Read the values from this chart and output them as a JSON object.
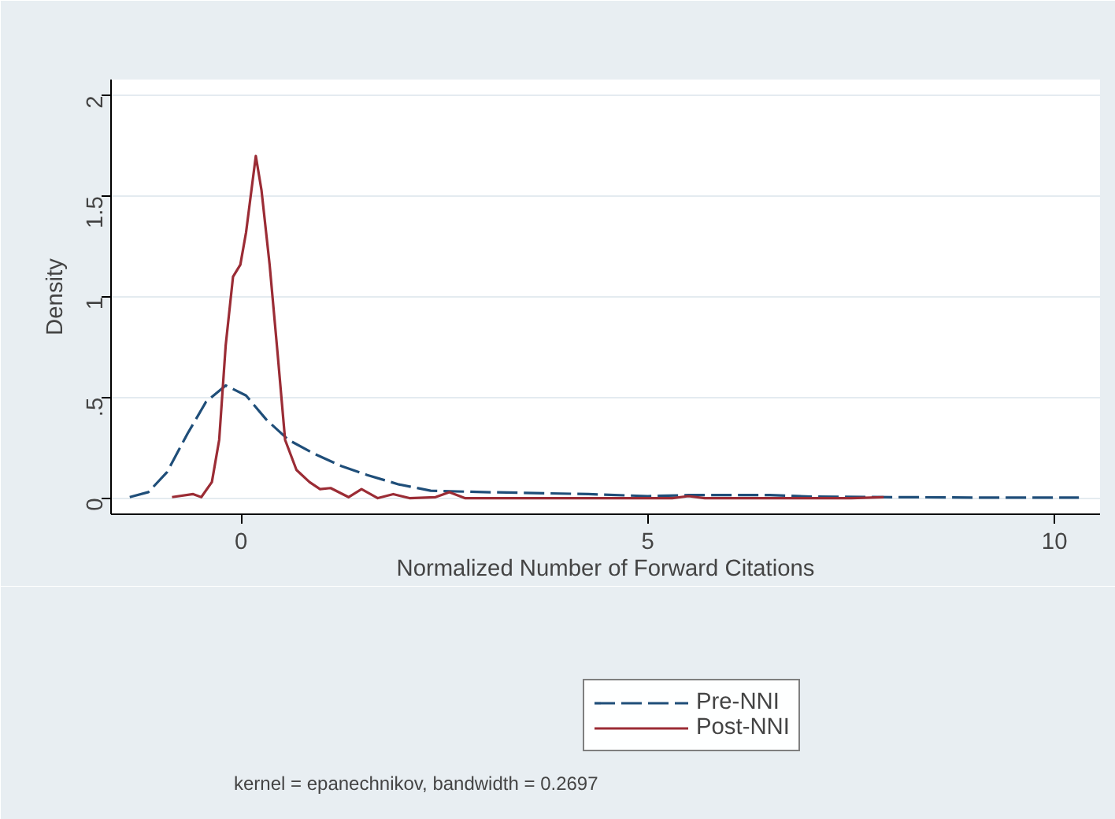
{
  "chart_data": {
    "type": "line",
    "xlabel": "Normalized Number of Forward Citations",
    "ylabel": "Density",
    "xlim": [
      -1.6,
      10.56
    ],
    "ylim": [
      -0.08,
      2.08
    ],
    "xticks": [
      0,
      5,
      10
    ],
    "yticks": [
      0,
      {
        "value": 0.5,
        "label": ".5"
      },
      1,
      1.5,
      2
    ],
    "grid": "y",
    "legend": "bottom",
    "annotations": [
      "kernel = epanechnikov, bandwidth = 0.2697"
    ],
    "series": [
      {
        "name": "Pre-NNI",
        "color": "#1f4e79",
        "line_style": "dashed",
        "x": [
          -1.37,
          -1.14,
          -0.91,
          -0.66,
          -0.43,
          -0.19,
          0.06,
          0.31,
          0.58,
          0.9,
          1.23,
          1.55,
          1.94,
          2.33,
          2.98,
          4.27,
          5.0,
          5.5,
          6.5,
          7.0,
          8.0,
          9.0,
          10.3
        ],
        "values": [
          0.005,
          0.03,
          0.13,
          0.32,
          0.48,
          0.56,
          0.51,
          0.39,
          0.29,
          0.22,
          0.16,
          0.115,
          0.068,
          0.037,
          0.03,
          0.02,
          0.01,
          0.015,
          0.015,
          0.008,
          0.005,
          0.003,
          0.003
        ]
      },
      {
        "name": "Post-NNI",
        "color": "#9b2c35",
        "line_style": "solid",
        "x": [
          -0.85,
          -0.59,
          -0.49,
          -0.36,
          -0.27,
          -0.19,
          -0.1,
          -0.01,
          0.06,
          0.18,
          0.25,
          0.35,
          0.45,
          0.54,
          0.68,
          0.84,
          0.97,
          1.1,
          1.32,
          1.48,
          1.68,
          1.87,
          2.07,
          2.39,
          2.56,
          2.75,
          5.3,
          5.5,
          5.7,
          7.5,
          7.9
        ],
        "values": [
          0.005,
          0.02,
          0.005,
          0.08,
          0.29,
          0.76,
          1.1,
          1.16,
          1.32,
          1.7,
          1.53,
          1.16,
          0.71,
          0.29,
          0.14,
          0.08,
          0.045,
          0.05,
          0.005,
          0.045,
          0,
          0.02,
          0,
          0.005,
          0.03,
          0,
          0,
          0.01,
          0,
          0,
          0.005
        ]
      }
    ]
  }
}
